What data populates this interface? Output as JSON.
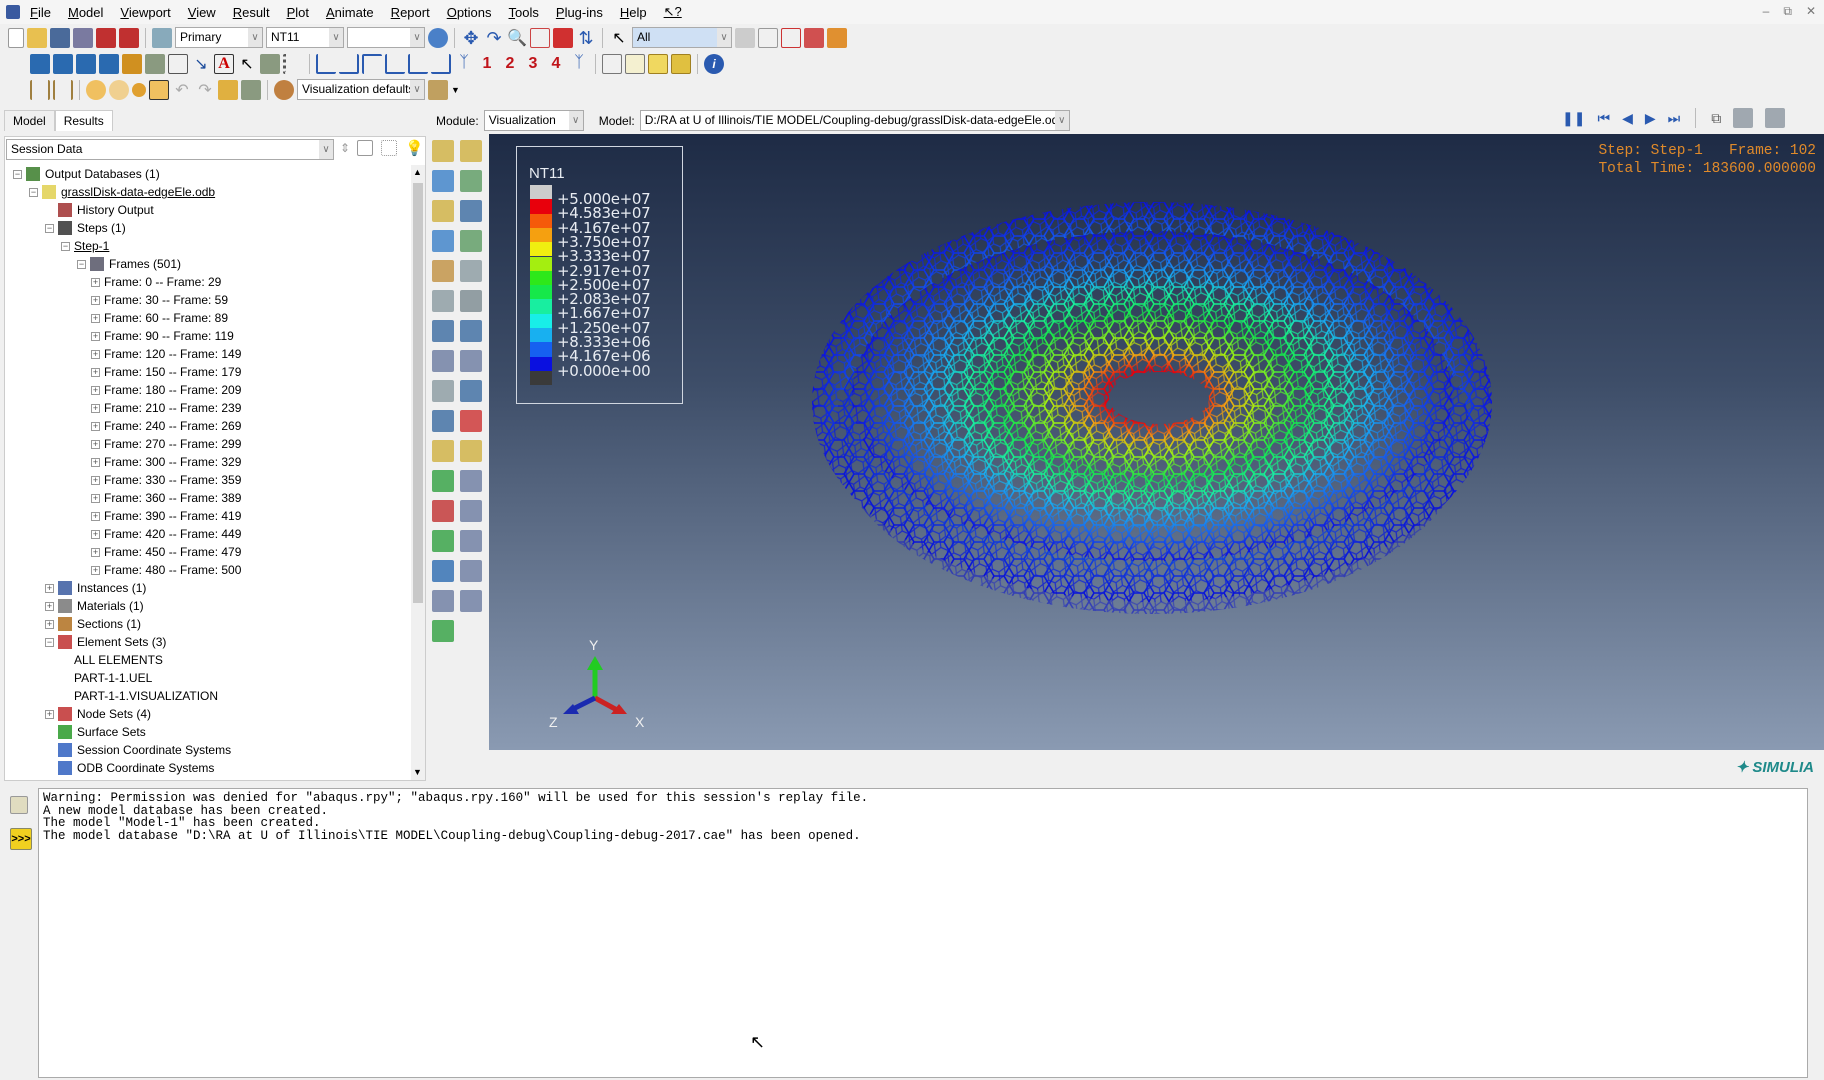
{
  "menu": [
    "File",
    "Model",
    "Viewport",
    "View",
    "Result",
    "Plot",
    "Animate",
    "Report",
    "Options",
    "Tools",
    "Plug-ins",
    "Help",
    "↖?"
  ],
  "toolbar": {
    "primary": "Primary",
    "variable": "NT11",
    "blank": "",
    "selection": "All",
    "render_style": "Visualization defaults",
    "step_numbers": [
      "1",
      "2",
      "3",
      "4"
    ]
  },
  "tabs": [
    "Model",
    "Results"
  ],
  "module_bar": {
    "module_label": "Module:",
    "module_value": "Visualization",
    "model_label": "Model:",
    "model_value": "D:/RA at U of Illinois/TIE MODEL/Coupling-debug/grasslDisk-data-edgeEle.odb"
  },
  "session_select": "Session Data",
  "tree": [
    {
      "level": 0,
      "label": "Output Databases (1)",
      "exp": "-",
      "icon": "database-icon",
      "color": "#3a7d2a"
    },
    {
      "level": 1,
      "label": "grasslDisk-data-edgeEle.odb",
      "exp": "-",
      "icon": "lock-icon",
      "underline": true,
      "color": "#e0d050"
    },
    {
      "level": 2,
      "label": "History Output",
      "exp": "",
      "icon": "history-icon",
      "color": "#a03030"
    },
    {
      "level": 2,
      "label": "Steps (1)",
      "exp": "-",
      "icon": "steps-icon",
      "color": "#333"
    },
    {
      "level": 3,
      "label": "Step-1",
      "exp": "-",
      "icon": "",
      "underline": true
    },
    {
      "level": 4,
      "label": "Frames (501)",
      "exp": "-",
      "icon": "frames-icon",
      "color": "#556"
    },
    {
      "level": 5,
      "label": "Frame: 0 -- Frame: 29",
      "exp": "+"
    },
    {
      "level": 5,
      "label": "Frame: 30 -- Frame: 59",
      "exp": "+"
    },
    {
      "level": 5,
      "label": "Frame: 60 -- Frame: 89",
      "exp": "+"
    },
    {
      "level": 5,
      "label": "Frame: 90 -- Frame: 119",
      "exp": "+"
    },
    {
      "level": 5,
      "label": "Frame: 120 -- Frame: 149",
      "exp": "+"
    },
    {
      "level": 5,
      "label": "Frame: 150 -- Frame: 179",
      "exp": "+"
    },
    {
      "level": 5,
      "label": "Frame: 180 -- Frame: 209",
      "exp": "+"
    },
    {
      "level": 5,
      "label": "Frame: 210 -- Frame: 239",
      "exp": "+"
    },
    {
      "level": 5,
      "label": "Frame: 240 -- Frame: 269",
      "exp": "+"
    },
    {
      "level": 5,
      "label": "Frame: 270 -- Frame: 299",
      "exp": "+"
    },
    {
      "level": 5,
      "label": "Frame: 300 -- Frame: 329",
      "exp": "+"
    },
    {
      "level": 5,
      "label": "Frame: 330 -- Frame: 359",
      "exp": "+"
    },
    {
      "level": 5,
      "label": "Frame: 360 -- Frame: 389",
      "exp": "+"
    },
    {
      "level": 5,
      "label": "Frame: 390 -- Frame: 419",
      "exp": "+"
    },
    {
      "level": 5,
      "label": "Frame: 420 -- Frame: 449",
      "exp": "+"
    },
    {
      "level": 5,
      "label": "Frame: 450 -- Frame: 479",
      "exp": "+"
    },
    {
      "level": 5,
      "label": "Frame: 480 -- Frame: 500",
      "exp": "+"
    },
    {
      "level": 2,
      "label": "Instances (1)",
      "exp": "+",
      "icon": "instances-icon",
      "color": "#3a5aa0"
    },
    {
      "level": 2,
      "label": "Materials (1)",
      "exp": "+",
      "icon": "materials-icon",
      "color": "#777"
    },
    {
      "level": 2,
      "label": "Sections (1)",
      "exp": "+",
      "icon": "sections-icon",
      "color": "#b07020"
    },
    {
      "level": 2,
      "label": "Element Sets (3)",
      "exp": "-",
      "icon": "element-sets-icon",
      "color": "#c03030"
    },
    {
      "level": 3,
      "label": "ALL ELEMENTS",
      "exp": ""
    },
    {
      "level": 3,
      "label": "PART-1-1.UEL",
      "exp": ""
    },
    {
      "level": 3,
      "label": "PART-1-1.VISUALIZATION",
      "exp": ""
    },
    {
      "level": 2,
      "label": "Node Sets (4)",
      "exp": "+",
      "icon": "node-sets-icon",
      "color": "#c03030"
    },
    {
      "level": 2,
      "label": "Surface Sets",
      "exp": "",
      "icon": "surface-sets-icon",
      "color": "#2a9a2a"
    },
    {
      "level": 2,
      "label": "Session Coordinate Systems",
      "exp": "",
      "icon": "csys-icon",
      "color": "#3060c0"
    },
    {
      "level": 2,
      "label": "ODB Coordinate Systems",
      "exp": "",
      "icon": "odb-csys-icon",
      "color": "#3060c0"
    }
  ],
  "legend": {
    "title": "NT11",
    "labels": [
      "+5.000e+07",
      "+4.583e+07",
      "+4.167e+07",
      "+3.750e+07",
      "+3.333e+07",
      "+2.917e+07",
      "+2.500e+07",
      "+2.083e+07",
      "+1.667e+07",
      "+1.250e+07",
      "+8.333e+06",
      "+4.167e+06",
      "+0.000e+00"
    ],
    "colors": [
      "#cccccc",
      "#e8000c",
      "#f55a0a",
      "#f5a010",
      "#f0ee10",
      "#a4ee10",
      "#2ee81a",
      "#16e84a",
      "#18eea0",
      "#18eee8",
      "#18b0f0",
      "#1660f0",
      "#0a10e0",
      "#3a3a3a"
    ]
  },
  "step_info": {
    "line1": "Step: Step-1   Frame: 102",
    "line2": "Total Time: 183600.000000"
  },
  "triad": {
    "x": "X",
    "y": "Y",
    "z": "Z"
  },
  "brand": "SIMULIA",
  "console": [
    "Warning: Permission was denied for \"abaqus.rpy\"; \"abaqus.rpy.160\" will be used for this session's replay file.",
    "A new model database has been created.",
    "The model \"Model-1\" has been created.",
    "The model database \"D:\\RA at U of Illinois\\TIE MODEL\\Coupling-debug\\Coupling-debug-2017.cae\" has been opened."
  ]
}
